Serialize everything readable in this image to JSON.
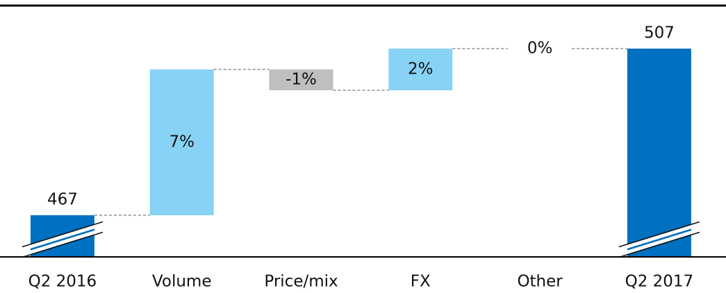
{
  "chart_data": {
    "type": "waterfall",
    "categories": [
      "Q2 2016",
      "Volume",
      "Price/mix",
      "FX",
      "Other",
      "Q2 2017"
    ],
    "measures": [
      "total",
      "relative",
      "relative",
      "relative",
      "relative",
      "total"
    ],
    "values": [
      467,
      7,
      -1,
      2,
      0,
      507
    ],
    "value_labels": [
      "467",
      "7%",
      "-1%",
      "2%",
      "0%",
      "507"
    ],
    "colors": {
      "total": "#0070c0",
      "increase": "#87d2f5",
      "decrease": "#bfbfbf"
    }
  }
}
